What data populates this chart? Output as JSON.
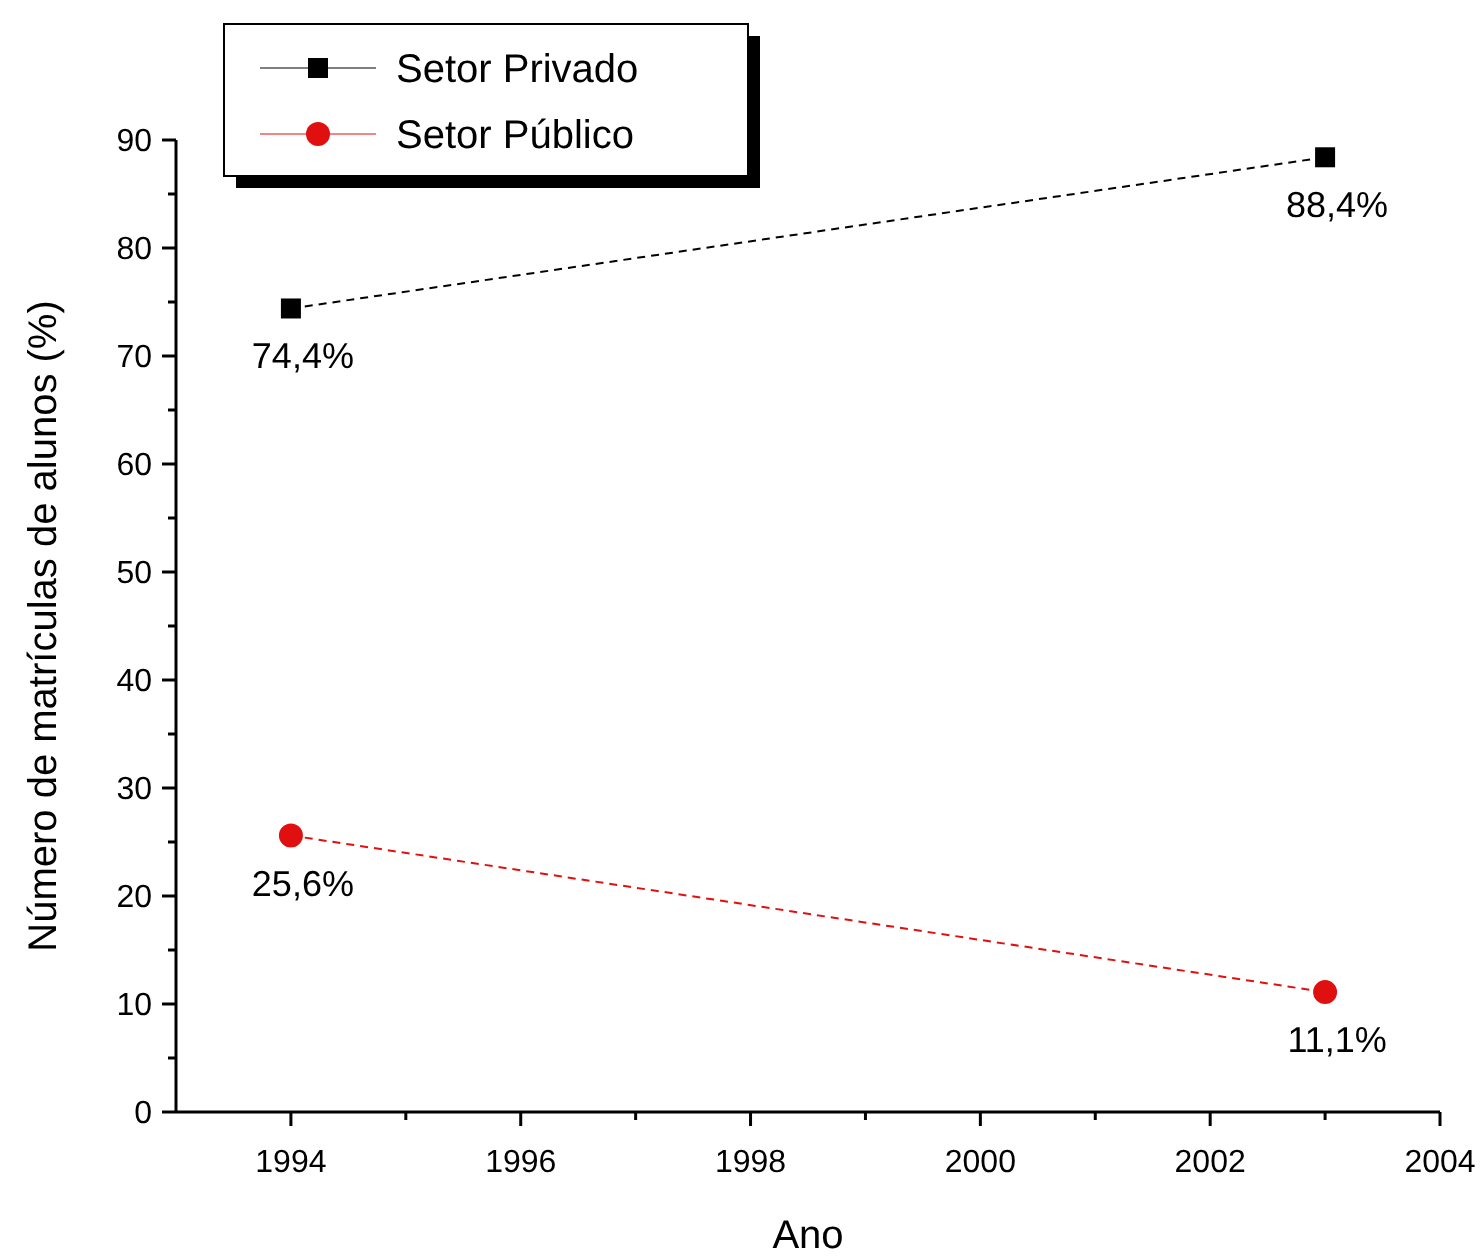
{
  "chart_data": {
    "type": "line",
    "xlabel": "Ano",
    "ylabel": "Número de matrículas de alunos (%)",
    "x": [
      1994,
      2003
    ],
    "series": [
      {
        "name": "Setor Privado",
        "color": "#000000",
        "values": [
          74.4,
          88.4
        ],
        "value_labels": [
          "74,4%",
          "88,4%"
        ],
        "marker": "square"
      },
      {
        "name": "Setor Público",
        "color": "#e01010",
        "values": [
          25.6,
          11.1
        ],
        "value_labels": [
          "25,6%",
          "11,1%"
        ],
        "marker": "circle"
      }
    ],
    "xlim": [
      1993,
      2004
    ],
    "ylim": [
      0,
      90
    ],
    "xticks": [
      1994,
      {
        "value": 1995,
        "label": null
      },
      1996,
      {
        "value": 1997,
        "label": null
      },
      1998,
      {
        "value": 1999,
        "label": null
      },
      2000,
      {
        "value": 2001,
        "label": null
      },
      2002,
      {
        "value": 2003,
        "label": null
      },
      2004
    ],
    "yticks": [
      0,
      {
        "value": 5,
        "label": null
      },
      10,
      {
        "value": 15,
        "label": null
      },
      20,
      {
        "value": 25,
        "label": null
      },
      30,
      {
        "value": 35,
        "label": null
      },
      40,
      {
        "value": 45,
        "label": null
      },
      50,
      {
        "value": 55,
        "label": null
      },
      60,
      {
        "value": 65,
        "label": null
      },
      70,
      {
        "value": 75,
        "label": null
      },
      80,
      {
        "value": 85,
        "label": null
      },
      90
    ],
    "line_style": "dashed",
    "legend": "top left",
    "grid": false
  }
}
